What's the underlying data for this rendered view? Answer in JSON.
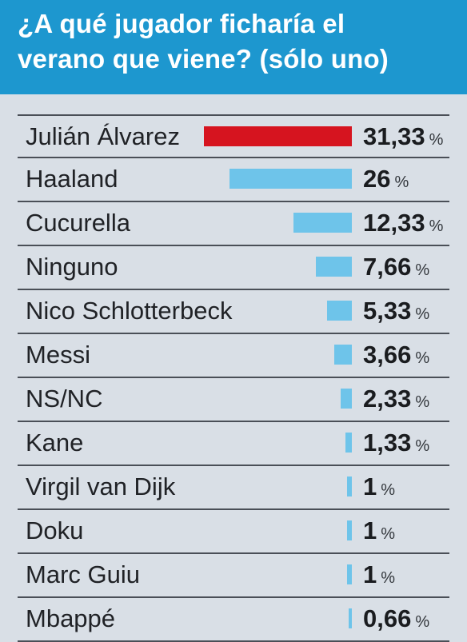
{
  "header": {
    "title": "¿A qué jugador ficharía el\nverano que viene?  (sólo uno)"
  },
  "colors": {
    "header_bg": "#1d97cf",
    "highlight_bar": "#d6141f",
    "default_bar": "#6ec4ea"
  },
  "chart_data": {
    "type": "bar",
    "orientation": "horizontal",
    "title": "¿A qué jugador ficharía el verano que viene?  (sólo uno)",
    "unit": "%",
    "categories": [
      "Julián Álvarez",
      "Haaland",
      "Cucurella",
      "Ninguno",
      "Nico Schlotterbeck",
      "Messi",
      "NS/NC",
      "Kane",
      "Virgil van Dijk",
      "Doku",
      "Marc Guiu",
      "Mbappé"
    ],
    "values": [
      31.33,
      26,
      12.33,
      7.66,
      5.33,
      3.66,
      2.33,
      1.33,
      1,
      1,
      1,
      0.66
    ],
    "value_labels": [
      "31,33",
      "26",
      "12,33",
      "7,66",
      "5,33",
      "3,66",
      "2,33",
      "1,33",
      "1",
      "1",
      "1",
      "0,66"
    ],
    "highlight_index": 0
  }
}
